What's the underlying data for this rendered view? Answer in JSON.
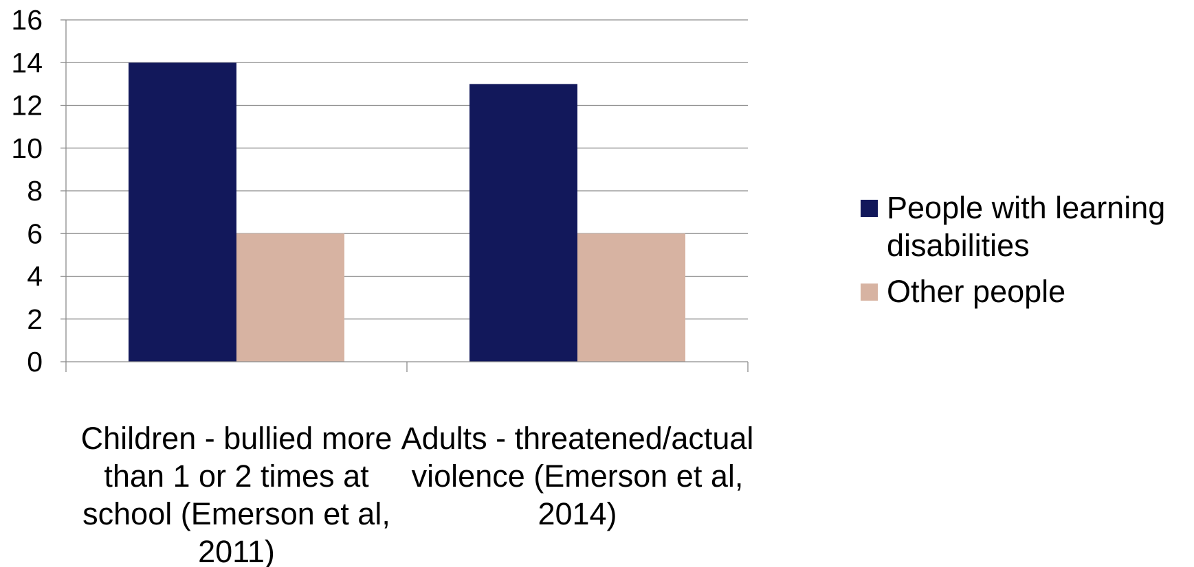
{
  "chart_data": {
    "type": "bar",
    "title": "",
    "xlabel": "",
    "ylabel": "",
    "ylim": [
      0,
      16
    ],
    "ytick_step": 2,
    "y_ticks": [
      "0",
      "2",
      "4",
      "6",
      "8",
      "10",
      "12",
      "14",
      "16"
    ],
    "grid": true,
    "legend_position": "right",
    "categories": [
      [
        "Children - bullied more",
        "than 1 or 2 times at",
        "school (Emerson et al,",
        "2011)"
      ],
      [
        "Adults - threatened/actual",
        "violence (Emerson et al,",
        "2014)"
      ]
    ],
    "series": [
      {
        "name": [
          "People with learning",
          "disabilities"
        ],
        "color": "#12185b",
        "values": [
          14,
          13
        ]
      },
      {
        "name": [
          "Other people"
        ],
        "color": "#d7b3a2",
        "values": [
          6,
          6
        ]
      }
    ]
  }
}
